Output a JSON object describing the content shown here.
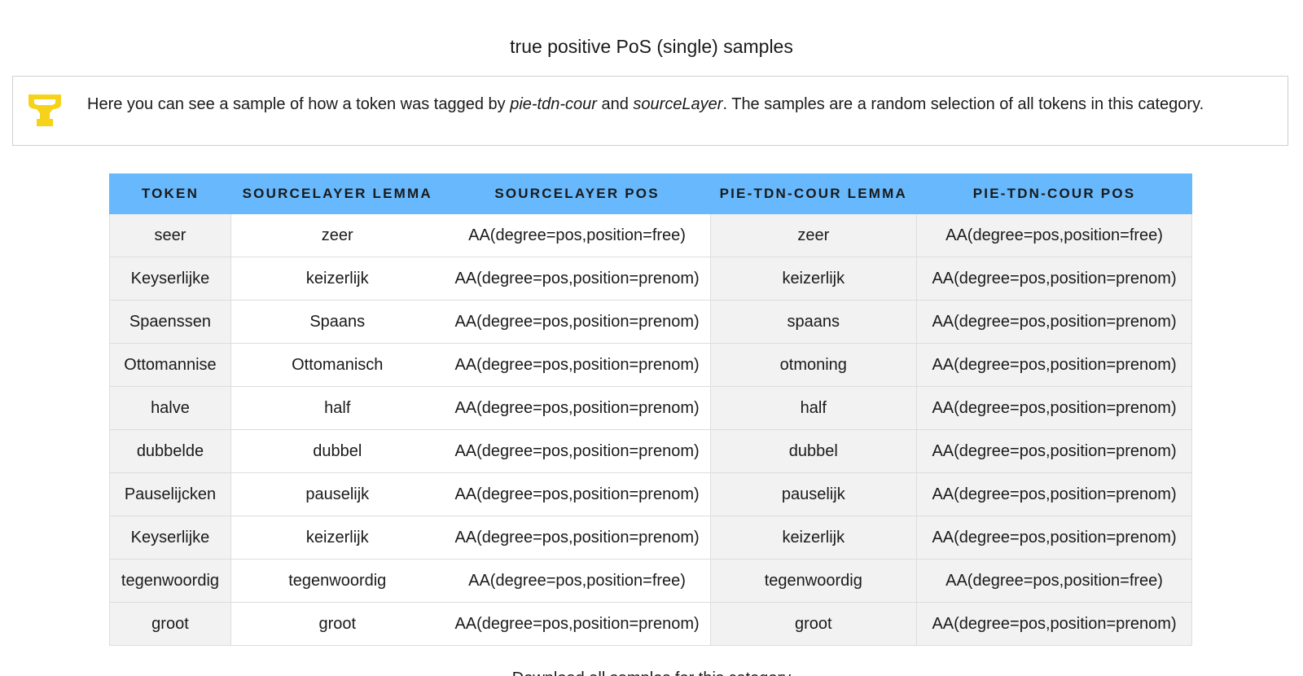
{
  "page": {
    "title": "true positive PoS (single) samples"
  },
  "info": {
    "icon": "trophy-icon",
    "icon_color": "#f7d21a",
    "text_before": "Here you can see a sample of how a token was tagged by ",
    "tagger": "pie-tdn-cour",
    "text_middle": " and ",
    "source": "sourceLayer",
    "text_after": ". The samples are a random selection of all tokens in this category."
  },
  "table": {
    "header_color": "#67b8fc",
    "columns": [
      "TOKEN",
      "SOURCELAYER LEMMA",
      "SOURCELAYER POS",
      "PIE-TDN-COUR LEMMA",
      "PIE-TDN-COUR POS"
    ],
    "rows": [
      [
        "seer",
        "zeer",
        "AA(degree=pos,position=free)",
        "zeer",
        "AA(degree=pos,position=free)"
      ],
      [
        "Keyserlijke",
        "keizerlijk",
        "AA(degree=pos,position=prenom)",
        "keizerlijk",
        "AA(degree=pos,position=prenom)"
      ],
      [
        "Spaenssen",
        "Spaans",
        "AA(degree=pos,position=prenom)",
        "spaans",
        "AA(degree=pos,position=prenom)"
      ],
      [
        "Ottomannise",
        "Ottomanisch",
        "AA(degree=pos,position=prenom)",
        "otmoning",
        "AA(degree=pos,position=prenom)"
      ],
      [
        "halve",
        "half",
        "AA(degree=pos,position=prenom)",
        "half",
        "AA(degree=pos,position=prenom)"
      ],
      [
        "dubbelde",
        "dubbel",
        "AA(degree=pos,position=prenom)",
        "dubbel",
        "AA(degree=pos,position=prenom)"
      ],
      [
        "Pauselijcken",
        "pauselijk",
        "AA(degree=pos,position=prenom)",
        "pauselijk",
        "AA(degree=pos,position=prenom)"
      ],
      [
        "Keyserlijke",
        "keizerlijk",
        "AA(degree=pos,position=prenom)",
        "keizerlijk",
        "AA(degree=pos,position=prenom)"
      ],
      [
        "tegenwoordig",
        "tegenwoordig",
        "AA(degree=pos,position=free)",
        "tegenwoordig",
        "AA(degree=pos,position=free)"
      ],
      [
        "groot",
        "groot",
        "AA(degree=pos,position=prenom)",
        "groot",
        "AA(degree=pos,position=prenom)"
      ]
    ]
  },
  "footer": {
    "text": "Download all samples for this category"
  }
}
